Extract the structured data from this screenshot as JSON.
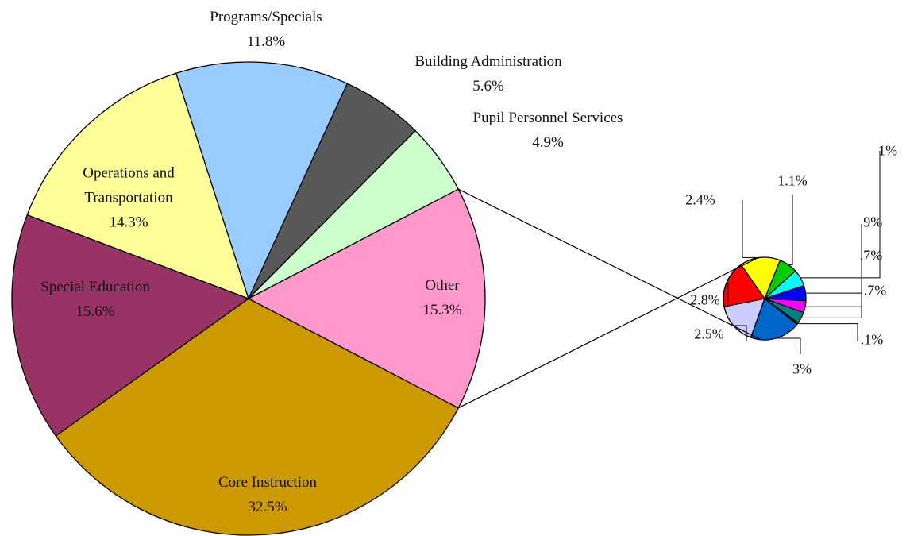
{
  "chart_data": [
    {
      "type": "pie",
      "categories": [
        "Core Instruction",
        "Special Education",
        "Operations and Transportation",
        "Programs/Specials",
        "Building Administration",
        "Pupil Personnel Services",
        "Other"
      ],
      "values": [
        32.5,
        15.6,
        14.3,
        11.8,
        5.6,
        4.9,
        15.3
      ],
      "value_labels": [
        "32.5%",
        "15.6%",
        "14.3%",
        "11.8%",
        "5.6%",
        "4.9%",
        "15.3%"
      ],
      "colors": [
        "#cc9900",
        "#993366",
        "#ffff99",
        "#99ccff",
        "#595959",
        "#ccffcc",
        "#ff99cc"
      ]
    },
    {
      "type": "pie",
      "values": [
        1.1,
        1,
        0.9,
        0.7,
        0.7,
        0.1,
        3,
        2.5,
        2.8,
        2.4
      ],
      "value_labels": [
        "1.1%",
        "1%",
        ".9%",
        ".7%",
        ".7%",
        ".1%",
        "3%",
        "2.5%",
        "2.8%",
        "2.4%"
      ],
      "colors": [
        "#00cc00",
        "#00ffff",
        "#0000ff",
        "#ff00ff",
        "#008080",
        "#003300",
        "#0066cc",
        "#ccccff",
        "#ff0000",
        "#ffff00"
      ]
    }
  ]
}
